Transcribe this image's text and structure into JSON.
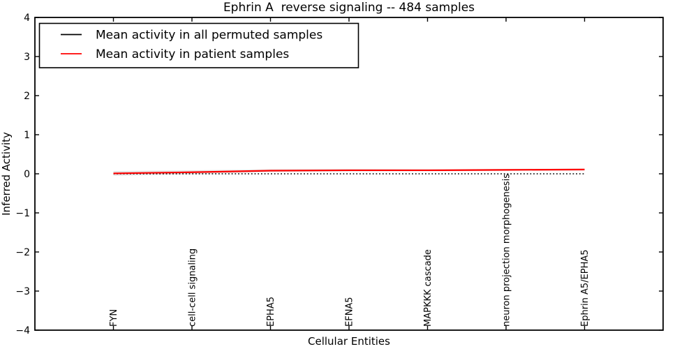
{
  "figure": {
    "background_color": "#ffffff",
    "axes_color": "#000000"
  },
  "chart_data": {
    "type": "line",
    "title": "Ephrin A  reverse signaling -- 484 samples",
    "xlabel": "Cellular Entities",
    "ylabel": "Inferred Activity",
    "xlim": [
      0,
      8
    ],
    "ylim": [
      -4,
      4
    ],
    "yticks": [
      -4,
      -3,
      -2,
      -1,
      0,
      1,
      2,
      3,
      4
    ],
    "ytick_labels": [
      "−4",
      "−3",
      "−2",
      "−1",
      "0",
      "1",
      "2",
      "3",
      "4"
    ],
    "grid": false,
    "legend_position": "upper-left",
    "categories": [
      "FYN",
      "cell-cell signaling",
      "EPHA5",
      "EFNA5",
      "MAPKKK cascade",
      "neuron projection morphogenesis",
      "Ephrin A5/EPHA5"
    ],
    "x_positions": [
      1,
      2,
      3,
      4,
      5,
      6,
      7
    ],
    "series": [
      {
        "name": "Mean activity in all permuted samples",
        "color": "#000000",
        "style": "dotted",
        "values": [
          0.0,
          0.0,
          0.0,
          0.0,
          0.0,
          0.0,
          0.0
        ]
      },
      {
        "name": "Mean activity in patient samples",
        "color": "#ff0000",
        "style": "solid",
        "values": [
          0.01,
          0.04,
          0.08,
          0.09,
          0.09,
          0.1,
          0.11
        ]
      }
    ],
    "band": {
      "around_series": "Mean activity in patient samples",
      "color": "#d9d9d9",
      "half_widths": [
        0.06,
        0.05,
        0.035,
        0.03,
        0.025,
        0.025,
        0.025
      ]
    }
  }
}
